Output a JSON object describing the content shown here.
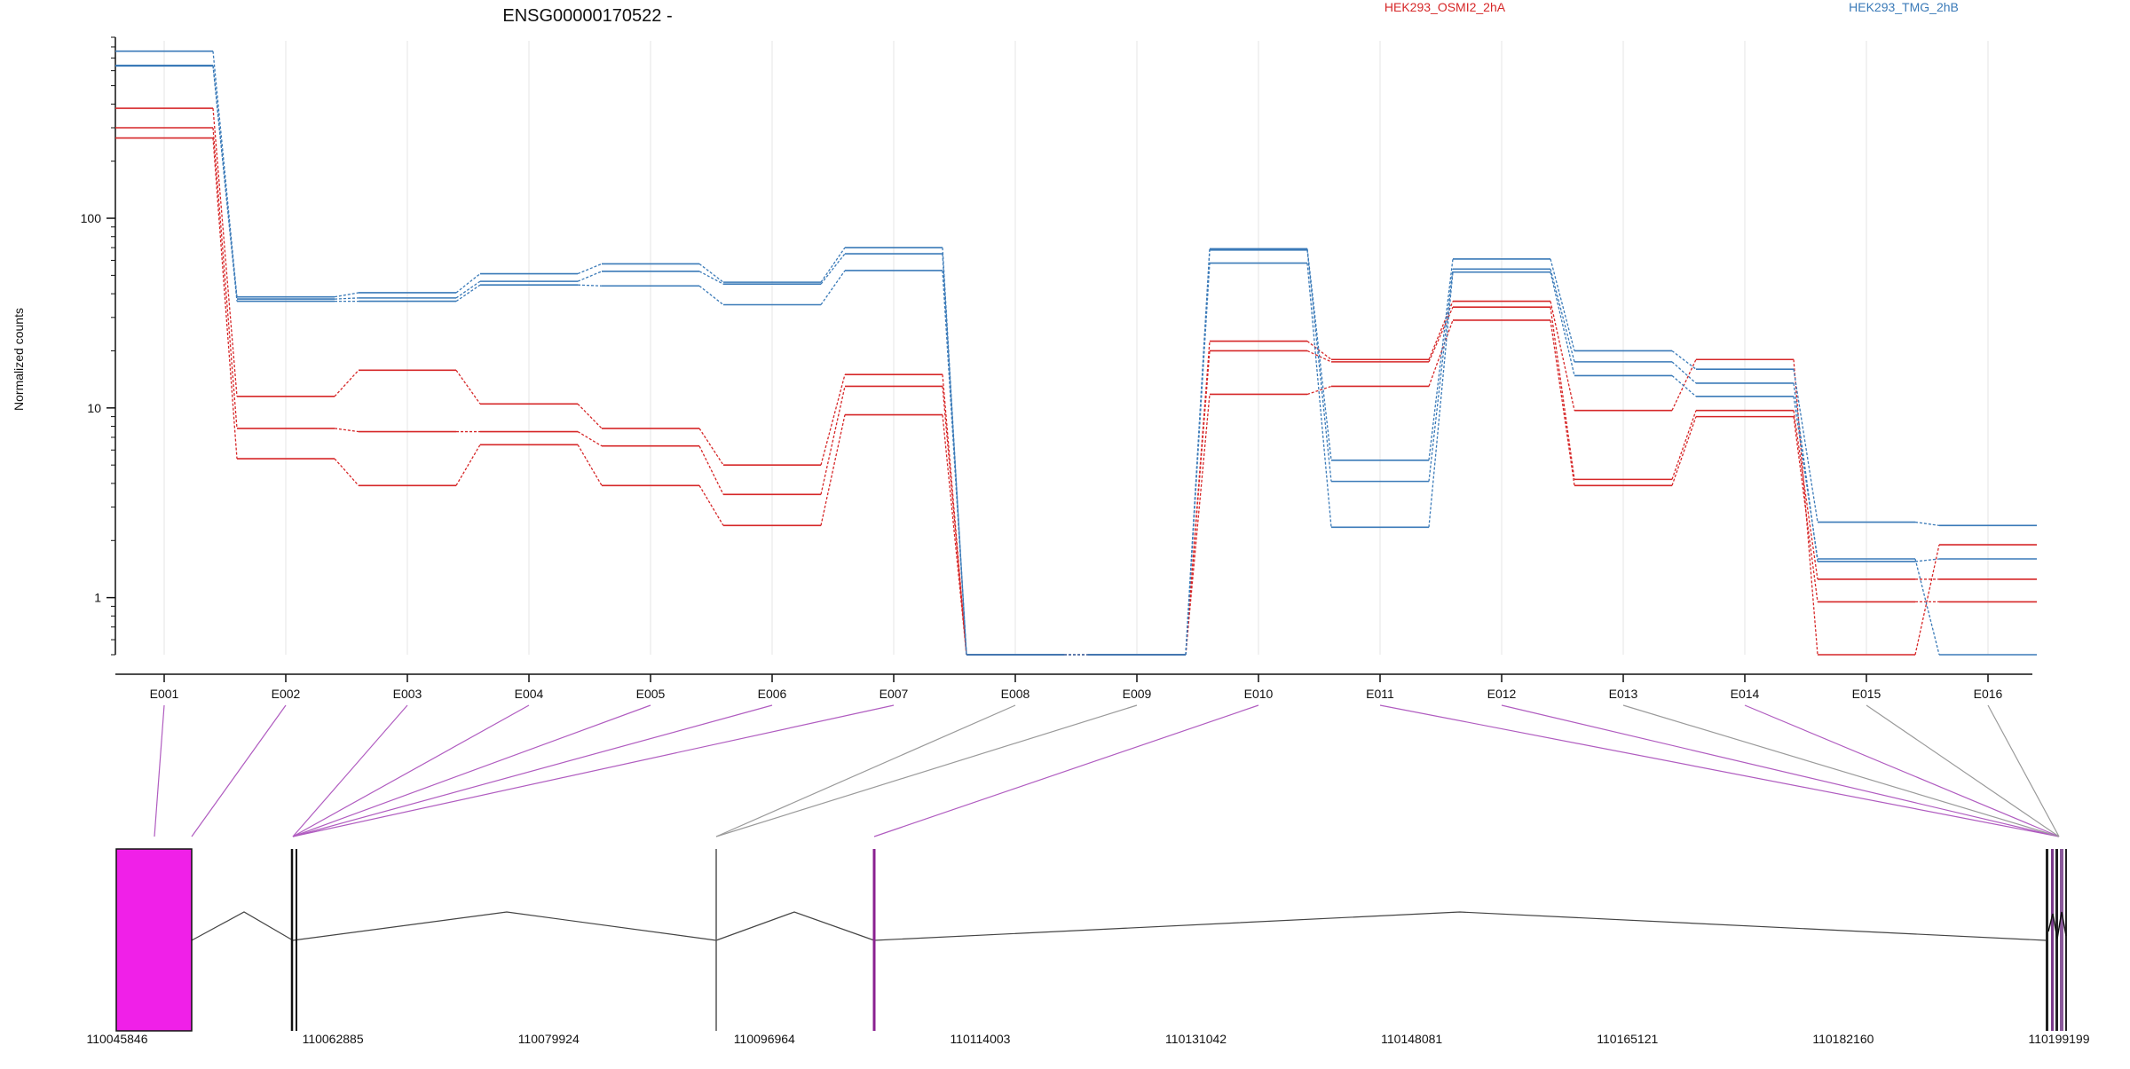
{
  "chart_data": {
    "type": "line",
    "title": "ENSG00000170522 -",
    "ylabel": "Normalized counts",
    "yscale": "log",
    "ylim": [
      0.5,
      900
    ],
    "y_ticks": [
      "1",
      "10",
      "100"
    ],
    "categories": [
      "E001",
      "E002",
      "E003",
      "E004",
      "E005",
      "E006",
      "E007",
      "E008",
      "E009",
      "E010",
      "E011",
      "E012",
      "E013",
      "E014",
      "E015",
      "E016"
    ],
    "legend": [
      {
        "name": "HEK293_OSMI2_2hA",
        "color": "#d62728"
      },
      {
        "name": "HEK293_TMG_2hB",
        "color": "#3a7ab8"
      }
    ],
    "series": [
      {
        "group": "HEK293_OSMI2_2hA",
        "values": [
          380,
          11.5,
          15.8,
          10.5,
          7.8,
          5.0,
          15.0,
          0.5,
          0.5,
          22.5,
          18.0,
          36.5,
          9.7,
          18.0,
          0.5,
          1.9
        ]
      },
      {
        "group": "HEK293_OSMI2_2hA",
        "values": [
          300,
          7.8,
          7.5,
          7.5,
          6.3,
          3.5,
          13.0,
          0.5,
          0.5,
          20.0,
          17.5,
          34.0,
          4.2,
          9.7,
          1.25,
          1.25
        ]
      },
      {
        "group": "HEK293_OSMI2_2hA",
        "values": [
          265,
          5.4,
          3.9,
          6.4,
          3.9,
          2.4,
          9.2,
          0.5,
          0.5,
          11.8,
          13.0,
          29.0,
          3.9,
          9.0,
          0.95,
          0.95
        ]
      },
      {
        "group": "HEK293_TMG_2hB",
        "values": [
          760,
          38.5,
          40.5,
          51.0,
          57.5,
          46.0,
          70.0,
          0.5,
          0.5,
          69.0,
          5.3,
          61.0,
          20.0,
          16.0,
          2.5,
          2.4
        ]
      },
      {
        "group": "HEK293_TMG_2hB",
        "values": [
          640,
          37.5,
          38.0,
          46.5,
          52.5,
          45.0,
          65.0,
          0.5,
          0.5,
          68.0,
          4.1,
          54.0,
          17.5,
          13.5,
          1.55,
          1.6
        ]
      },
      {
        "group": "HEK293_TMG_2hB",
        "values": [
          635,
          36.5,
          36.5,
          44.5,
          44.0,
          35.0,
          53.0,
          0.5,
          0.5,
          58.0,
          2.35,
          52.0,
          14.8,
          11.5,
          1.6,
          0.5
        ]
      }
    ],
    "gene_model": {
      "coordinate_labels": [
        "110045846",
        "110062885",
        "110079924",
        "110096964",
        "110114003",
        "110131042",
        "110148081",
        "110165121",
        "110182160",
        "110199199"
      ],
      "exon_highlight_color": "#f020e8",
      "connector_highlighted_color": "#b05cc0",
      "connector_plain_color": "#9a9a9a"
    }
  }
}
